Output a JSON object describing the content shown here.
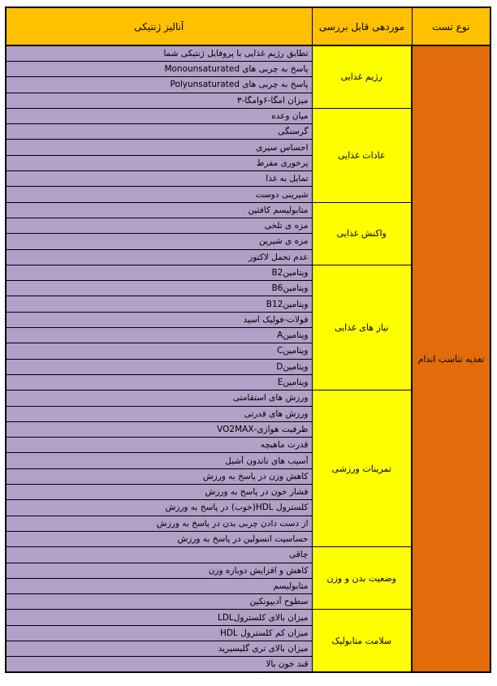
{
  "colors": {
    "header_bg": "#FFC000",
    "test_type_bg": "#E26B0A",
    "category_bg": "#FFFF00",
    "item_bg": "#B1A0C7",
    "border": "#000000",
    "text": "#000000"
  },
  "header": {
    "test_type": "نوع تست",
    "reviewable_items": "موردهی قابل بررسی",
    "genetic_analysis": "آنالیز ژنتیکی"
  },
  "test_type": "تغذیه تناسب اندام",
  "groups": [
    {
      "category": "رژیم غذایی",
      "items": [
        "تطابق رژیم غذایی با پروفایل ژنتیکی شما",
        "پاسخ به چربی های Monounsaturated",
        "پاسخ به چربی های Polyunsaturated",
        "میزان امگا-۶وامگا-۳"
      ]
    },
    {
      "category": "عادات غذایی",
      "items": [
        "میان وعده",
        "گرسنگی",
        "احساس سیری",
        "پرخوری مفرط",
        "تمایل به غذا",
        "شیرینی دوست"
      ]
    },
    {
      "category": "واکنش غذایی",
      "items": [
        "متابولیسم کافئین",
        "مزه ی تلخی",
        "مزه ی شیرین",
        "عدم تحمل لاکتوز"
      ]
    },
    {
      "category": "نیاز های غذایی",
      "items": [
        "ویتامینB2",
        "ویتامینB6",
        "ویتامینB12",
        "فولات-فولیک اسید",
        "ویتامینA",
        "ویتامینC",
        "ویتامینD",
        "ویتامینE"
      ]
    },
    {
      "category": "تمرینات ورزشی",
      "items": [
        "ورزش های استقامتی",
        "ورزش های  قدرتی",
        "ظرفیت هوازی-VO2MAX",
        "قدرت ماهیچه",
        "آسیب های تاندون آشیل",
        "کاهش وزن در پاسخ به ورزش",
        "فشار خون در پاسخ به ورزش",
        "کلسترول HDL(خوب) در پاسخ به ورزش",
        "از دست دادن چربی بدن در پاسخ به ورزش",
        "حساسیت انسولین در پاسخ به ورزش"
      ]
    },
    {
      "category": "وضعیت بدن و وزن",
      "items": [
        "چاقی",
        "کاهش و افزایش دوباره وزن",
        "متابولیسم",
        "سطوح آدیپونکین"
      ]
    },
    {
      "category": "سلامت متابولیک",
      "items": [
        "میزان بالای کلسترولLDL",
        "میزان کم کلسترول HDL",
        "میزان بالای تری گلیسیرید",
        "قند خون بالا"
      ]
    }
  ]
}
